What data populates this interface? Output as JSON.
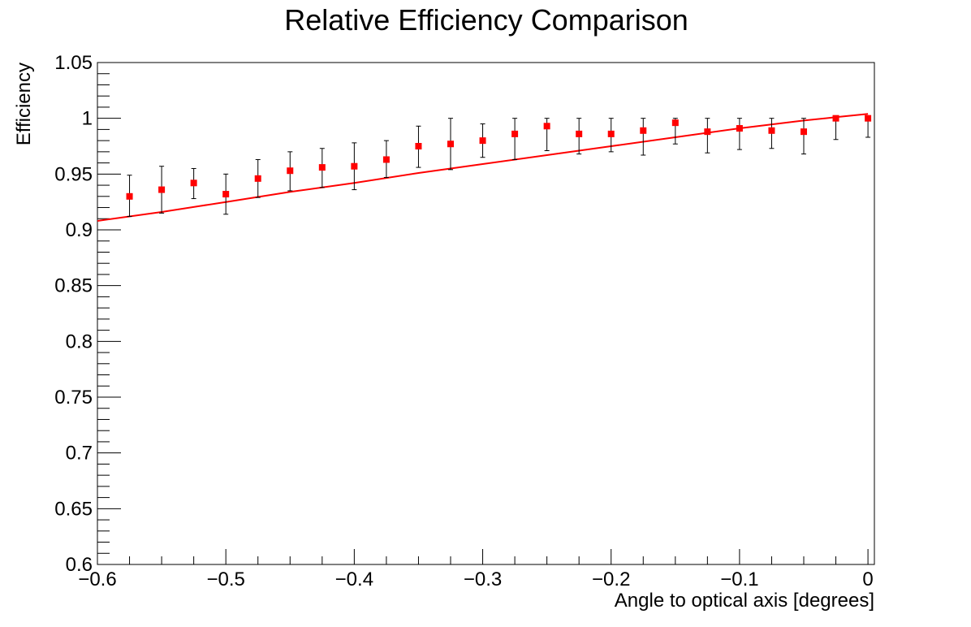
{
  "chart_data": {
    "type": "scatter",
    "title": "Relative Efficiency Comparison",
    "xlabel": "Angle to optical axis [degrees]",
    "ylabel": "Efficiency",
    "xlim": [
      -0.6,
      0.005
    ],
    "ylim": [
      0.6,
      1.05
    ],
    "x_ticks": [
      {
        "value": -0.6,
        "label": "−0.6"
      },
      {
        "value": -0.5,
        "label": "−0.5"
      },
      {
        "value": -0.4,
        "label": "−0.4"
      },
      {
        "value": -0.3,
        "label": "−0.3"
      },
      {
        "value": -0.2,
        "label": "−0.2"
      },
      {
        "value": -0.1,
        "label": "−0.1"
      },
      {
        "value": 0,
        "label": "0"
      }
    ],
    "y_ticks": [
      {
        "value": 0.6,
        "label": "0.6"
      },
      {
        "value": 0.65,
        "label": "0.65"
      },
      {
        "value": 0.7,
        "label": "0.7"
      },
      {
        "value": 0.75,
        "label": "0.75"
      },
      {
        "value": 0.8,
        "label": "0.8"
      },
      {
        "value": 0.85,
        "label": "0.85"
      },
      {
        "value": 0.9,
        "label": "0.9"
      },
      {
        "value": 0.95,
        "label": "0.95"
      },
      {
        "value": 1,
        "label": "1"
      },
      {
        "value": 1.05,
        "label": "1.05"
      }
    ],
    "grid": false,
    "marker_color": "#ff0000",
    "fit_color": "#ff0000",
    "errorbar_color": "#000000",
    "points": [
      {
        "x": -0.575,
        "y": 0.93,
        "y_low": 0.912,
        "y_high": 0.949
      },
      {
        "x": -0.55,
        "y": 0.936,
        "y_low": 0.915,
        "y_high": 0.957
      },
      {
        "x": -0.525,
        "y": 0.942,
        "y_low": 0.928,
        "y_high": 0.955
      },
      {
        "x": -0.5,
        "y": 0.932,
        "y_low": 0.914,
        "y_high": 0.95
      },
      {
        "x": -0.475,
        "y": 0.946,
        "y_low": 0.929,
        "y_high": 0.963
      },
      {
        "x": -0.45,
        "y": 0.953,
        "y_low": 0.935,
        "y_high": 0.97
      },
      {
        "x": -0.425,
        "y": 0.956,
        "y_low": 0.938,
        "y_high": 0.973
      },
      {
        "x": -0.4,
        "y": 0.957,
        "y_low": 0.936,
        "y_high": 0.978
      },
      {
        "x": -0.375,
        "y": 0.963,
        "y_low": 0.947,
        "y_high": 0.98
      },
      {
        "x": -0.35,
        "y": 0.975,
        "y_low": 0.956,
        "y_high": 0.993
      },
      {
        "x": -0.325,
        "y": 0.977,
        "y_low": 0.954,
        "y_high": 1.0
      },
      {
        "x": -0.3,
        "y": 0.98,
        "y_low": 0.965,
        "y_high": 0.995
      },
      {
        "x": -0.275,
        "y": 0.986,
        "y_low": 0.963,
        "y_high": 1.0
      },
      {
        "x": -0.25,
        "y": 0.993,
        "y_low": 0.971,
        "y_high": 1.0
      },
      {
        "x": -0.225,
        "y": 0.986,
        "y_low": 0.968,
        "y_high": 1.0
      },
      {
        "x": -0.2,
        "y": 0.986,
        "y_low": 0.97,
        "y_high": 1.0
      },
      {
        "x": -0.175,
        "y": 0.989,
        "y_low": 0.967,
        "y_high": 1.0
      },
      {
        "x": -0.15,
        "y": 0.996,
        "y_low": 0.977,
        "y_high": 1.0
      },
      {
        "x": -0.125,
        "y": 0.988,
        "y_low": 0.969,
        "y_high": 1.0
      },
      {
        "x": -0.1,
        "y": 0.991,
        "y_low": 0.972,
        "y_high": 1.0
      },
      {
        "x": -0.075,
        "y": 0.989,
        "y_low": 0.973,
        "y_high": 1.0
      },
      {
        "x": -0.05,
        "y": 0.988,
        "y_low": 0.968,
        "y_high": 1.0
      },
      {
        "x": -0.025,
        "y": 1.0,
        "y_low": 0.981,
        "y_high": 1.0
      },
      {
        "x": 0.0,
        "y": 1.0,
        "y_low": 0.983,
        "y_high": 1.0
      }
    ],
    "fit_curve": [
      {
        "x": -0.6,
        "y": 0.908
      },
      {
        "x": -0.55,
        "y": 0.916
      },
      {
        "x": -0.5,
        "y": 0.925
      },
      {
        "x": -0.45,
        "y": 0.934
      },
      {
        "x": -0.4,
        "y": 0.942
      },
      {
        "x": -0.35,
        "y": 0.951
      },
      {
        "x": -0.3,
        "y": 0.959
      },
      {
        "x": -0.25,
        "y": 0.967
      },
      {
        "x": -0.2,
        "y": 0.975
      },
      {
        "x": -0.15,
        "y": 0.983
      },
      {
        "x": -0.1,
        "y": 0.991
      },
      {
        "x": -0.05,
        "y": 0.998
      },
      {
        "x": -0.025,
        "y": 1.001
      },
      {
        "x": 0.0,
        "y": 1.004
      }
    ]
  }
}
